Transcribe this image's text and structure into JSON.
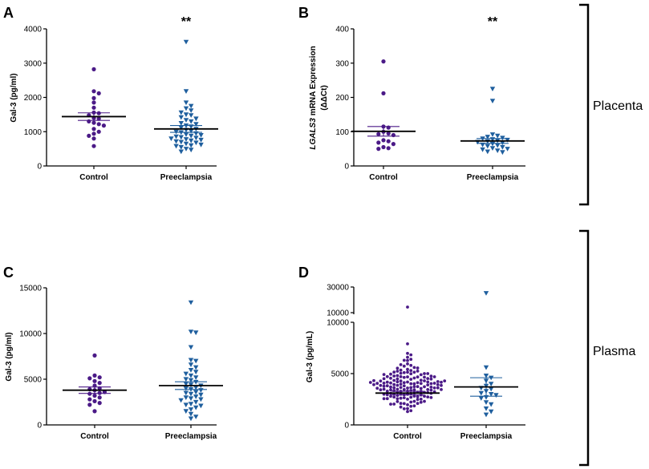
{
  "colors": {
    "control": "#4b1a87",
    "preeclampsia": "#1f5f9e",
    "axis": "#000000"
  },
  "groups": {
    "upper": "Placenta",
    "lower": "Plasma"
  },
  "chart_data": [
    {
      "panel": "A",
      "type": "scatter",
      "ylabel": "Gal-3 (pg/ml)",
      "ylim": [
        0,
        4000
      ],
      "yticks": [
        0,
        1000,
        2000,
        3000,
        4000
      ],
      "categories": [
        "Control",
        "Preeclampsia"
      ],
      "significance": "**",
      "series": [
        {
          "name": "Control",
          "marker": "circle",
          "mean": 1440,
          "sem": 110,
          "values": [
            2820,
            2180,
            2120,
            1980,
            1850,
            1700,
            1560,
            1540,
            1480,
            1400,
            1380,
            1300,
            1260,
            1220,
            1180,
            1080,
            1000,
            940,
            880,
            800,
            580
          ]
        },
        {
          "name": "Preeclampsia",
          "marker": "triangle-down",
          "mean": 1080,
          "sem": 100,
          "values": [
            3620,
            2180,
            1850,
            1750,
            1680,
            1620,
            1560,
            1500,
            1480,
            1420,
            1380,
            1340,
            1300,
            1250,
            1220,
            1180,
            1150,
            1120,
            1080,
            1050,
            1020,
            1000,
            980,
            950,
            920,
            900,
            880,
            860,
            840,
            820,
            800,
            780,
            760,
            740,
            720,
            700,
            680,
            650,
            620,
            600,
            580,
            550,
            500,
            470,
            420
          ]
        }
      ]
    },
    {
      "panel": "B",
      "type": "scatter",
      "ylabel_italic": "LGALS3",
      "ylabel": "mRNA Expression",
      "ylabel2": "(ΔΔCt)",
      "ylim": [
        0,
        400
      ],
      "yticks": [
        0,
        100,
        200,
        300,
        400
      ],
      "categories": [
        "Control",
        "Preeclampsia"
      ],
      "significance": "**",
      "series": [
        {
          "name": "Control",
          "marker": "circle",
          "mean": 101,
          "sem": 14,
          "values": [
            305,
            212,
            115,
            112,
            100,
            95,
            93,
            90,
            75,
            72,
            68,
            64,
            55,
            52,
            50
          ]
        },
        {
          "name": "Preeclampsia",
          "marker": "triangle-down",
          "mean": 73,
          "sem": 7,
          "values": [
            225,
            190,
            92,
            88,
            85,
            82,
            80,
            78,
            76,
            74,
            72,
            70,
            68,
            65,
            62,
            60,
            58,
            55,
            52,
            50,
            48,
            45,
            42,
            40
          ]
        }
      ]
    },
    {
      "panel": "C",
      "type": "scatter",
      "ylabel": "Gal-3 (pg/ml)",
      "ylim": [
        0,
        15000
      ],
      "yticks": [
        0,
        5000,
        10000,
        15000
      ],
      "categories": [
        "Control",
        "Preeclampsia"
      ],
      "series": [
        {
          "name": "Control",
          "marker": "circle",
          "mean": 3800,
          "sem": 350,
          "values": [
            7600,
            5400,
            5200,
            5100,
            4800,
            4600,
            4300,
            4000,
            3900,
            3800,
            3600,
            3500,
            3400,
            3200,
            3000,
            2800,
            2600,
            2400,
            2200,
            1500
          ]
        },
        {
          "name": "Preeclampsia",
          "marker": "triangle-down",
          "mean": 4300,
          "sem": 420,
          "values": [
            13400,
            10200,
            10100,
            8500,
            7100,
            7000,
            6600,
            6300,
            6000,
            5800,
            5600,
            5400,
            5200,
            5000,
            4900,
            4700,
            4500,
            4400,
            4300,
            4100,
            4000,
            3900,
            3800,
            3600,
            3500,
            3400,
            3300,
            3100,
            3000,
            2900,
            2800,
            2700,
            2500,
            2300,
            2200,
            2100,
            1900,
            1700,
            1500,
            1200,
            900,
            700
          ]
        }
      ]
    },
    {
      "panel": "D",
      "type": "scatter",
      "ylabel": "Gal-3 (pg/mL)",
      "ylim_lower": [
        0,
        10000
      ],
      "ylim_upper": [
        10000,
        30000
      ],
      "yticks_lower": [
        0,
        5000,
        10000
      ],
      "yticks_upper": [
        10000,
        30000
      ],
      "categories": [
        "Control",
        "Preeclampsia"
      ],
      "series": [
        {
          "name": "Control",
          "marker": "circle",
          "mean": 3100,
          "sem": 180,
          "n": 160,
          "outliers": [
            15300
          ],
          "min": 600,
          "max": 7900
        },
        {
          "name": "Preeclampsia",
          "marker": "triangle-down",
          "mean": 3700,
          "sem": 900,
          "values": [
            25500,
            5600,
            4800,
            4600,
            4300,
            4000,
            3800,
            3600,
            3500,
            3300,
            3100,
            3000,
            2900,
            2700,
            2600,
            2200,
            2000,
            1600,
            1300,
            1000
          ]
        }
      ]
    }
  ]
}
